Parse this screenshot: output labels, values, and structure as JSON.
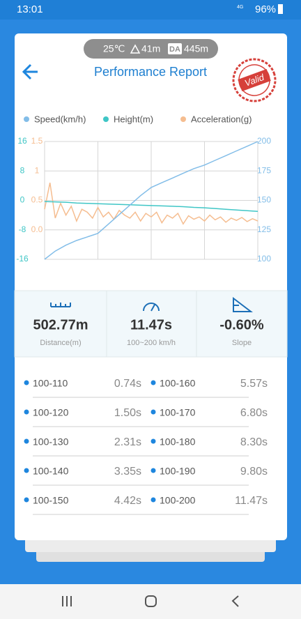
{
  "status_bar": {
    "time": "13:01",
    "network": "4G",
    "battery": "96%"
  },
  "header": {
    "temperature": "25℃",
    "altitude": "41m",
    "da_label": "DA",
    "da_value": "445m",
    "title": "Performance Report",
    "stamp": "Valid"
  },
  "chart_data": {
    "type": "line",
    "grid": true,
    "ylim": [
      -16,
      16
    ],
    "yticks": [
      16,
      8,
      0,
      -8,
      -16
    ],
    "y2lim": [
      100,
      200
    ],
    "y2ticks": [
      200,
      175,
      150,
      125,
      100
    ],
    "y3lim": [
      -0.5,
      1.5
    ],
    "y3ticks": [
      1.5,
      1,
      0.5,
      {
        "value": 0,
        "label": "0.0"
      }
    ],
    "series": [
      {
        "name": "Speed(km/h)",
        "color": "#82bde8",
        "axis": "y2",
        "values": [
          100,
          107,
          112,
          116,
          119,
          122,
          130,
          138,
          146,
          154,
          161,
          165,
          169,
          173,
          177,
          180,
          184,
          188,
          192,
          196,
          200
        ]
      },
      {
        "name": "Height(m)",
        "color": "#3fc6c6",
        "axis": "y",
        "values": [
          -0.3,
          -0.4,
          -0.5,
          -0.7,
          -0.8,
          -0.9,
          -1.0,
          -1.1,
          -1.2,
          -1.3,
          -1.4,
          -1.5,
          -1.6,
          -1.7,
          -1.9,
          -2.0,
          -2.2,
          -2.4,
          -2.6,
          -2.8,
          -3.0
        ]
      },
      {
        "name": "Acceleration(g)",
        "color": "#f5bd90",
        "axis": "y3",
        "values": [
          0.35,
          0.8,
          0.2,
          0.45,
          0.25,
          0.4,
          0.15,
          0.35,
          0.3,
          0.2,
          0.38,
          0.22,
          0.3,
          0.18,
          0.33,
          0.25,
          0.2,
          0.3,
          0.15,
          0.28,
          0.22,
          0.3,
          0.12,
          0.25,
          0.2,
          0.28,
          0.1,
          0.24,
          0.18,
          0.22,
          0.15,
          0.25,
          0.17,
          0.22,
          0.13,
          0.2,
          0.16,
          0.21,
          0.14,
          0.19,
          0.15
        ]
      }
    ]
  },
  "stats": [
    {
      "value": "502.77m",
      "label": "Distance(m)"
    },
    {
      "value": "11.47s",
      "label": "100~200 km/h"
    },
    {
      "value": "-0.60%",
      "label": "Slope"
    }
  ],
  "splits": [
    {
      "range": "100-110",
      "time": "0.74s"
    },
    {
      "range": "100-120",
      "time": "1.50s"
    },
    {
      "range": "100-130",
      "time": "2.31s"
    },
    {
      "range": "100-140",
      "time": "3.35s"
    },
    {
      "range": "100-150",
      "time": "4.42s"
    },
    {
      "range": "100-160",
      "time": "5.57s"
    },
    {
      "range": "100-170",
      "time": "6.80s"
    },
    {
      "range": "100-180",
      "time": "8.30s"
    },
    {
      "range": "100-190",
      "time": "9.80s"
    },
    {
      "range": "100-200",
      "time": "11.47s"
    }
  ]
}
